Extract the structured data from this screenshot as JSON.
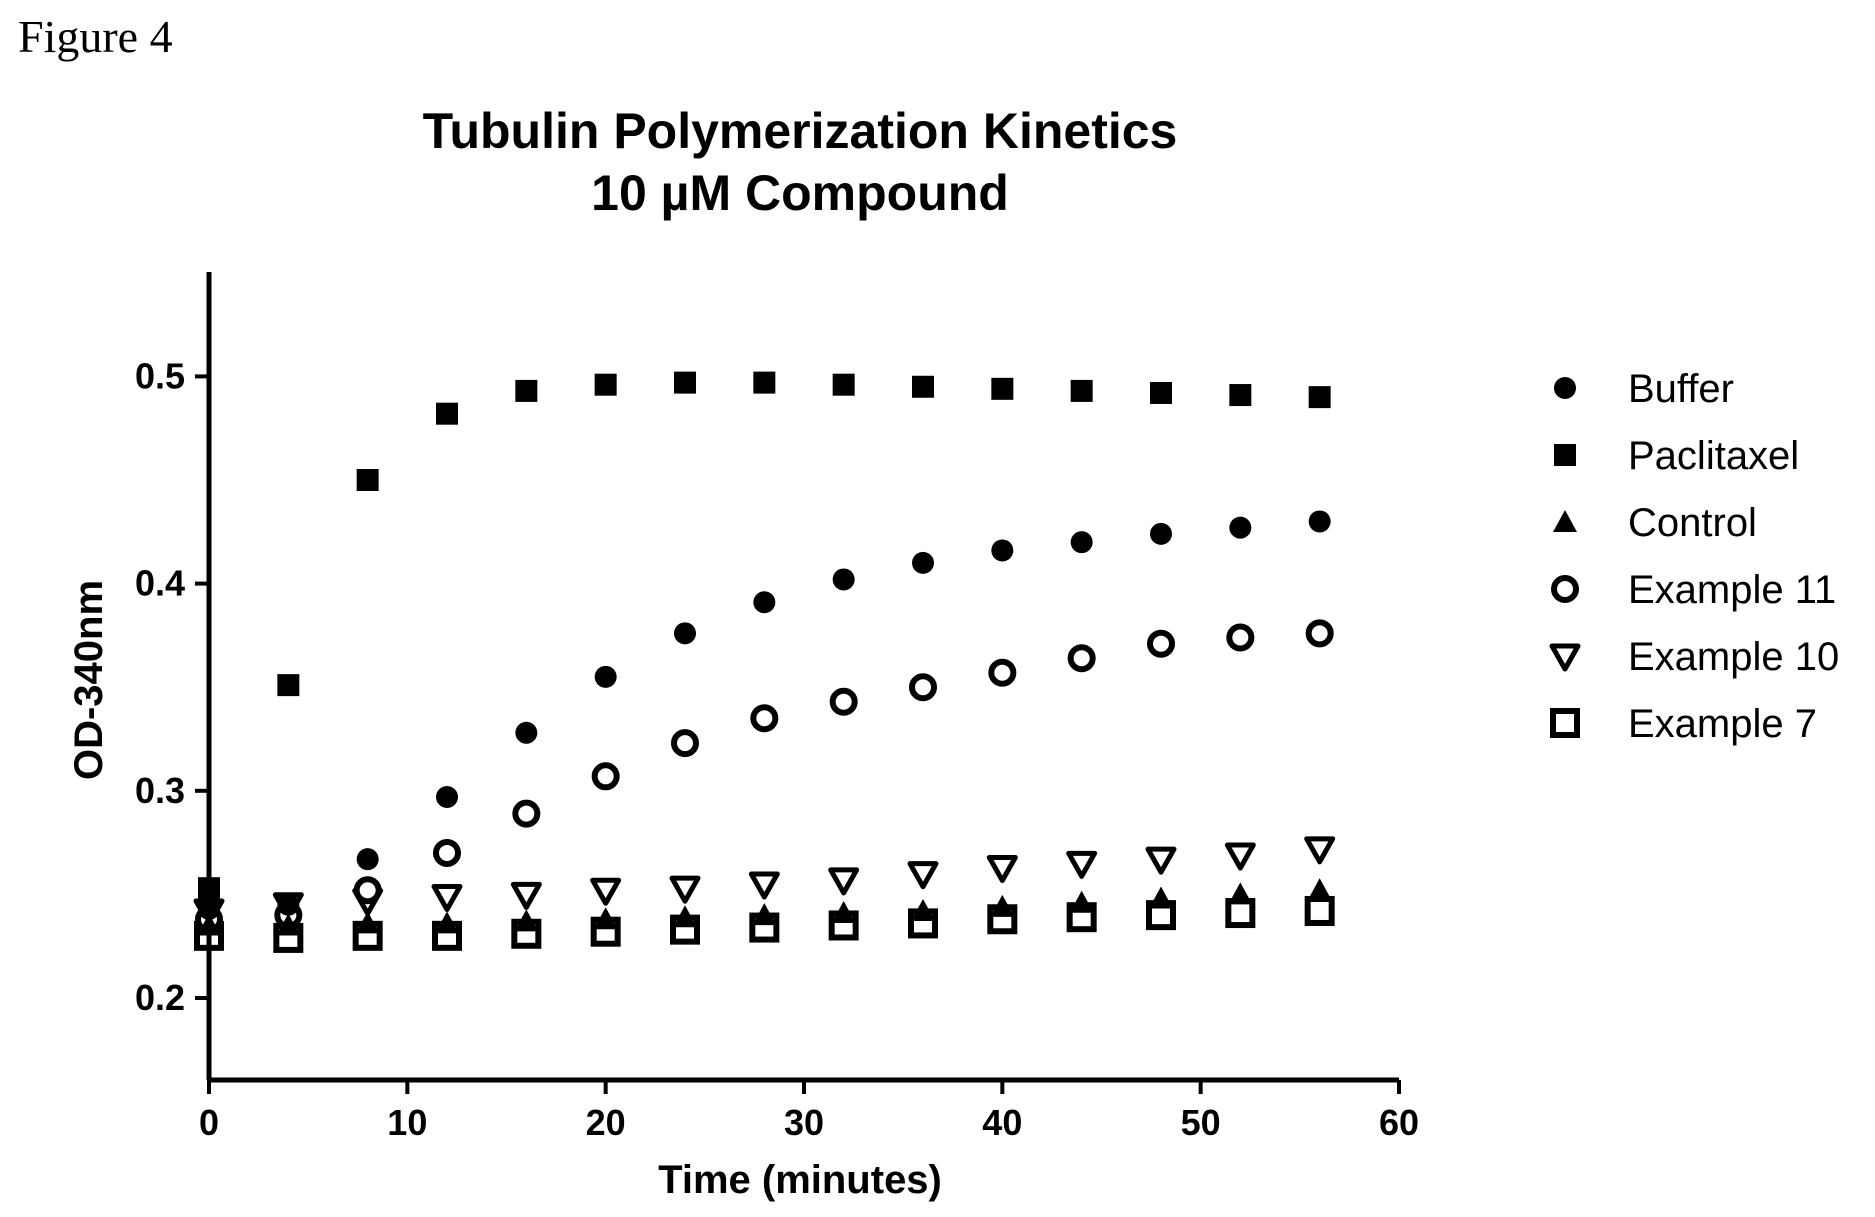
{
  "figure_label": "Figure 4",
  "chart_data": {
    "type": "scatter",
    "title": "Tubulin Polymerization Kinetics",
    "subtitle": "10 µM Compound",
    "xlabel": "Time (minutes)",
    "ylabel": "OD-340nm",
    "xlim": [
      0,
      60
    ],
    "ylim": [
      0.16,
      0.55
    ],
    "xticks": [
      "0",
      "10",
      "20",
      "30",
      "40",
      "50",
      "60"
    ],
    "yticks": [
      "0.2",
      "0.3",
      "0.4",
      "0.5"
    ],
    "grid": false,
    "legend_position": "right",
    "x": [
      0,
      4,
      8,
      12,
      16,
      20,
      24,
      28,
      32,
      36,
      40,
      44,
      48,
      52,
      56
    ],
    "series": [
      {
        "name": "Buffer",
        "marker": "circle-filled",
        "values": [
          0.243,
          0.245,
          0.267,
          0.297,
          0.328,
          0.355,
          0.376,
          0.391,
          0.402,
          0.41,
          0.416,
          0.42,
          0.424,
          0.427,
          0.43
        ]
      },
      {
        "name": "Paclitaxel",
        "marker": "square-filled",
        "values": [
          0.253,
          0.351,
          0.45,
          0.482,
          0.493,
          0.496,
          0.497,
          0.497,
          0.496,
          0.495,
          0.494,
          0.493,
          0.492,
          0.491,
          0.49
        ]
      },
      {
        "name": "Control",
        "marker": "triangle-up-filled",
        "values": [
          0.235,
          0.235,
          0.236,
          0.236,
          0.237,
          0.238,
          0.239,
          0.24,
          0.241,
          0.242,
          0.244,
          0.246,
          0.248,
          0.25,
          0.252
        ]
      },
      {
        "name": "Example 11",
        "marker": "circle-open",
        "values": [
          0.238,
          0.24,
          0.252,
          0.27,
          0.289,
          0.307,
          0.323,
          0.335,
          0.343,
          0.35,
          0.357,
          0.364,
          0.371,
          0.374,
          0.376
        ]
      },
      {
        "name": "Example 10",
        "marker": "triangle-down-open",
        "values": [
          0.242,
          0.245,
          0.247,
          0.249,
          0.25,
          0.252,
          0.253,
          0.255,
          0.257,
          0.26,
          0.263,
          0.265,
          0.267,
          0.269,
          0.272
        ]
      },
      {
        "name": "Example 7",
        "marker": "square-open",
        "values": [
          0.23,
          0.229,
          0.23,
          0.23,
          0.231,
          0.232,
          0.233,
          0.234,
          0.235,
          0.236,
          0.238,
          0.239,
          0.24,
          0.241,
          0.242
        ]
      }
    ]
  }
}
